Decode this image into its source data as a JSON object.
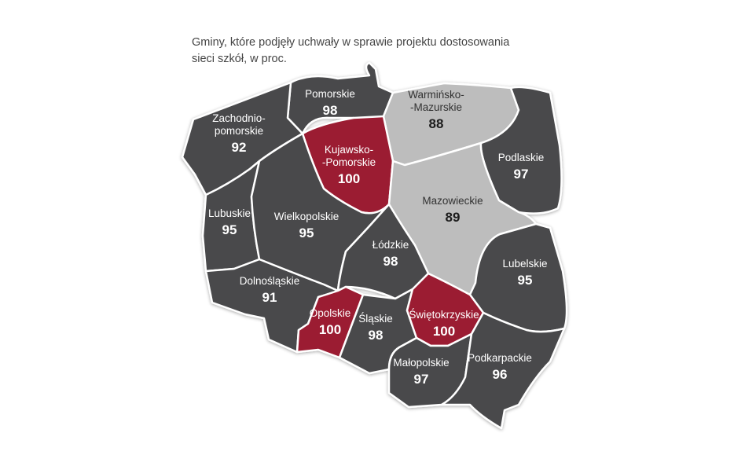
{
  "title": {
    "line1": "Gminy, które podjęły uchwały w sprawie projektu dostosowania",
    "line2": "sieci szkół, w proc."
  },
  "colors": {
    "dark": "#4a4a4c",
    "light": "#bdbdbd",
    "highlight": "#9b1b30",
    "outline": "#cfcfcf"
  },
  "regions": [
    {
      "id": "pomorskie",
      "name": [
        "Pomorskie"
      ],
      "value": 98,
      "category": "dark"
    },
    {
      "id": "warminsko-mazurskie",
      "name": [
        "Warmińsko-",
        "-Mazurskie"
      ],
      "value": 88,
      "category": "light"
    },
    {
      "id": "zachodniopomorskie",
      "name": [
        "Zachodnio-",
        "pomorskie"
      ],
      "value": 92,
      "category": "dark"
    },
    {
      "id": "kujawsko-pomorskie",
      "name": [
        "Kujawsko-",
        "-Pomorskie"
      ],
      "value": 100,
      "category": "highlight"
    },
    {
      "id": "podlaskie",
      "name": [
        "Podlaskie"
      ],
      "value": 97,
      "category": "dark"
    },
    {
      "id": "mazowieckie",
      "name": [
        "Mazowieckie"
      ],
      "value": 89,
      "category": "light"
    },
    {
      "id": "lubuskie",
      "name": [
        "Lubuskie"
      ],
      "value": 95,
      "category": "dark"
    },
    {
      "id": "wielkopolskie",
      "name": [
        "Wielkopolskie"
      ],
      "value": 95,
      "category": "dark"
    },
    {
      "id": "lodzkie",
      "name": [
        "Łódzkie"
      ],
      "value": 98,
      "category": "dark"
    },
    {
      "id": "lubelskie",
      "name": [
        "Lubelskie"
      ],
      "value": 95,
      "category": "dark"
    },
    {
      "id": "dolnoslaskie",
      "name": [
        "Dolnośląskie"
      ],
      "value": 91,
      "category": "dark"
    },
    {
      "id": "opolskie",
      "name": [
        "Opolskie"
      ],
      "value": 100,
      "category": "highlight"
    },
    {
      "id": "slaskie",
      "name": [
        "Śląskie"
      ],
      "value": 98,
      "category": "dark"
    },
    {
      "id": "swietokrzyskie",
      "name": [
        "Świętokrzyskie"
      ],
      "value": 100,
      "category": "highlight"
    },
    {
      "id": "malopolskie",
      "name": [
        "Małopolskie"
      ],
      "value": 97,
      "category": "dark"
    },
    {
      "id": "podkarpackie",
      "name": [
        "Podkarpackie"
      ],
      "value": 96,
      "category": "dark"
    }
  ]
}
